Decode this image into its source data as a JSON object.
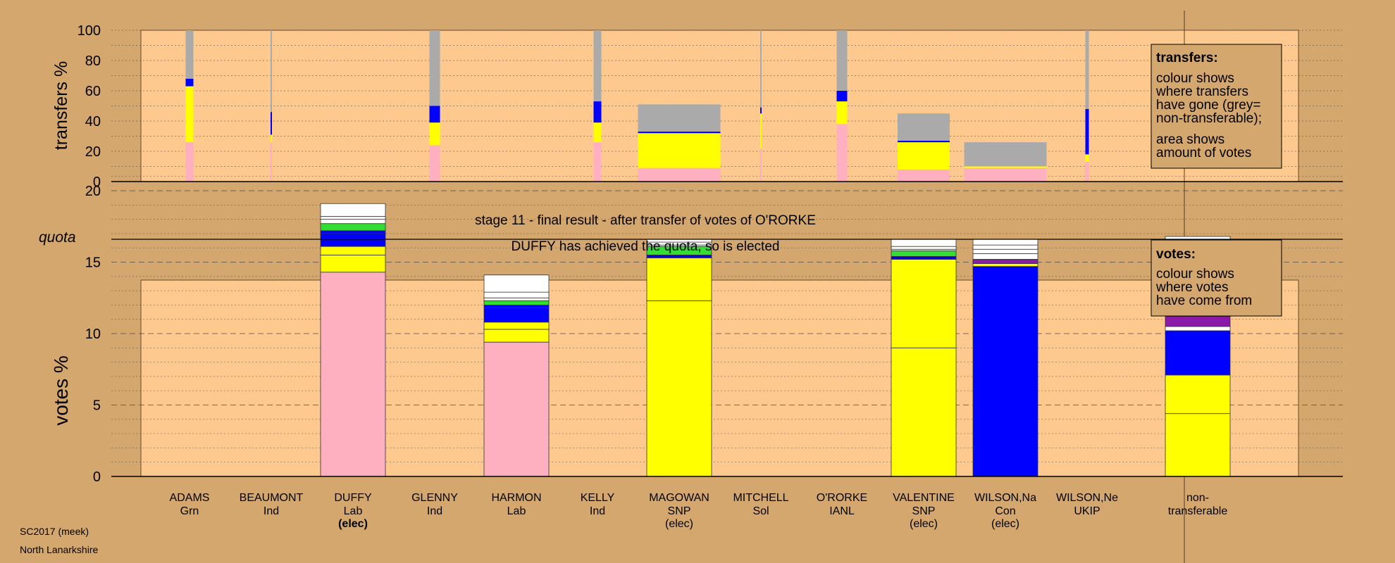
{
  "colors": {
    "page_bg": "#d4a76f",
    "panel_bg": "#fec98f",
    "Lab": "#ffb0c0",
    "SNP": "#ffff00",
    "Con": "#0000ff",
    "Grn": "#33dd33",
    "Other": "#8a1aa8",
    "Ind": "#ffffff",
    "nontransferable": "#aaaaaa"
  },
  "header": {
    "stage_text": "stage 11 - final result - after transfer of votes of O'RORKE",
    "elected_text": "DUFFY has achieved the quota, so is elected"
  },
  "footer": {
    "line1": "SC2017 (meek)",
    "line2": "North Lanarkshire"
  },
  "legend_transfers": {
    "title": "transfers:",
    "lines": [
      "colour shows",
      "where transfers",
      "have gone (grey=",
      "non-transferable);",
      "area shows",
      "amount of votes"
    ]
  },
  "legend_votes": {
    "title": "votes:",
    "lines": [
      "colour shows",
      "where votes",
      "have come from"
    ]
  },
  "chart_data": [
    {
      "type": "bar",
      "name": "transfers",
      "ylabel": "transfers %",
      "ylim": [
        0,
        100
      ],
      "yticks": [
        0,
        20,
        40,
        60,
        80,
        100
      ],
      "grid": true,
      "candidates": [
        {
          "name": "ADAMS",
          "width": "narrow",
          "segments": [
            {
              "party": "Lab",
              "value": 26
            },
            {
              "party": "SNP",
              "value": 37
            },
            {
              "party": "Con",
              "value": 5
            },
            {
              "party": "nontransferable",
              "value": 32
            }
          ]
        },
        {
          "name": "BEAUMONT",
          "width": "hair",
          "segments": [
            {
              "party": "Lab",
              "value": 26
            },
            {
              "party": "SNP",
              "value": 5
            },
            {
              "party": "Con",
              "value": 15
            },
            {
              "party": "nontransferable",
              "value": 54
            }
          ]
        },
        {
          "name": "DUFFY",
          "width": "none",
          "segments": []
        },
        {
          "name": "GLENNY",
          "width": "medium",
          "segments": [
            {
              "party": "Lab",
              "value": 24
            },
            {
              "party": "SNP",
              "value": 15
            },
            {
              "party": "Con",
              "value": 11
            },
            {
              "party": "nontransferable",
              "value": 50
            }
          ]
        },
        {
          "name": "HARMON",
          "width": "none",
          "segments": []
        },
        {
          "name": "KELLY",
          "width": "narrow",
          "segments": [
            {
              "party": "Lab",
              "value": 26
            },
            {
              "party": "SNP",
              "value": 13
            },
            {
              "party": "Con",
              "value": 14
            },
            {
              "party": "nontransferable",
              "value": 47
            }
          ]
        },
        {
          "name": "MAGOWAN",
          "width": "full",
          "segments": [
            {
              "party": "Lab",
              "value": 9
            },
            {
              "party": "SNP",
              "value": 23
            },
            {
              "party": "Con",
              "value": 1
            },
            {
              "party": "nontransferable",
              "value": 18
            }
          ]
        },
        {
          "name": "MITCHELL",
          "width": "hair",
          "segments": [
            {
              "party": "Lab",
              "value": 22
            },
            {
              "party": "SNP",
              "value": 23
            },
            {
              "party": "Con",
              "value": 4
            },
            {
              "party": "nontransferable",
              "value": 51
            }
          ]
        },
        {
          "name": "O'RORKE",
          "width": "medium",
          "segments": [
            {
              "party": "Lab",
              "value": 38
            },
            {
              "party": "SNP",
              "value": 15
            },
            {
              "party": "Con",
              "value": 7
            },
            {
              "party": "nontransferable",
              "value": 40
            }
          ]
        },
        {
          "name": "VALENTINE",
          "width": "wide",
          "segments": [
            {
              "party": "Lab",
              "value": 8
            },
            {
              "party": "SNP",
              "value": 18
            },
            {
              "party": "Con",
              "value": 1
            },
            {
              "party": "nontransferable",
              "value": 18
            }
          ]
        },
        {
          "name": "WILSON,Na",
          "width": "full",
          "segments": [
            {
              "party": "Lab",
              "value": 9
            },
            {
              "party": "SNP",
              "value": 1
            },
            {
              "party": "nontransferable",
              "value": 16
            }
          ]
        },
        {
          "name": "WILSON,Ne",
          "width": "narrow2",
          "segments": [
            {
              "party": "Lab",
              "value": 13
            },
            {
              "party": "SNP",
              "value": 5
            },
            {
              "party": "Con",
              "value": 30
            },
            {
              "party": "nontransferable",
              "value": 52
            }
          ]
        }
      ]
    },
    {
      "type": "bar",
      "name": "votes",
      "ylabel": "votes %",
      "ylim": [
        0,
        21.5
      ],
      "yticks": [
        0,
        5,
        10,
        15,
        20
      ],
      "quota": 16.6,
      "quota_label": "quota",
      "grid": true,
      "candidates": [
        {
          "name": "ADAMS",
          "party": "Grn",
          "elected": "",
          "segments": []
        },
        {
          "name": "BEAUMONT",
          "party": "Ind",
          "elected": "",
          "segments": []
        },
        {
          "name": "DUFFY",
          "party": "Lab",
          "elected": "(elec)",
          "elected_bold": true,
          "segments": [
            {
              "party": "Lab",
              "value": 14.3
            },
            {
              "party": "SNP",
              "value": 1.2
            },
            {
              "party": "SNP",
              "value": 0.6
            },
            {
              "party": "Con",
              "value": 0.9
            },
            {
              "party": "Con",
              "value": 0.2
            },
            {
              "party": "Grn",
              "value": 0.5
            },
            {
              "party": "Ind",
              "value": 0.3
            },
            {
              "party": "Ind",
              "value": 0.2
            },
            {
              "party": "Ind",
              "value": 0.9
            }
          ]
        },
        {
          "name": "GLENNY",
          "party": "Ind",
          "elected": "",
          "segments": []
        },
        {
          "name": "HARMON",
          "party": "Lab",
          "elected": "",
          "segments": [
            {
              "party": "Lab",
              "value": 9.4
            },
            {
              "party": "SNP",
              "value": 0.9
            },
            {
              "party": "SNP",
              "value": 0.5
            },
            {
              "party": "Con",
              "value": 1.0
            },
            {
              "party": "Con",
              "value": 0.2
            },
            {
              "party": "Grn",
              "value": 0.3
            },
            {
              "party": "Ind",
              "value": 0.2
            },
            {
              "party": "Ind",
              "value": 0.4
            },
            {
              "party": "Ind",
              "value": 1.2
            }
          ]
        },
        {
          "name": "KELLY",
          "party": "Ind",
          "elected": "",
          "segments": []
        },
        {
          "name": "MAGOWAN",
          "party": "SNP",
          "elected": "(elec)",
          "elected_bold": false,
          "segments": [
            {
              "party": "SNP",
              "value": 12.3
            },
            {
              "party": "SNP",
              "value": 3.0
            },
            {
              "party": "Con",
              "value": 0.2
            },
            {
              "party": "Grn",
              "value": 0.6
            },
            {
              "party": "Ind",
              "value": 0.1
            },
            {
              "party": "Ind",
              "value": 0.2
            },
            {
              "party": "Ind",
              "value": 0.2
            }
          ]
        },
        {
          "name": "MITCHELL",
          "party": "Sol",
          "elected": "",
          "segments": []
        },
        {
          "name": "O'RORKE",
          "party": "IANL",
          "elected": "",
          "segments": []
        },
        {
          "name": "VALENTINE",
          "party": "SNP",
          "elected": "(elec)",
          "elected_bold": false,
          "segments": [
            {
              "party": "SNP",
              "value": 9.0
            },
            {
              "party": "SNP",
              "value": 6.2
            },
            {
              "party": "Con",
              "value": 0.2
            },
            {
              "party": "Grn",
              "value": 0.4
            },
            {
              "party": "Ind",
              "value": 0.1
            },
            {
              "party": "Ind",
              "value": 0.2
            },
            {
              "party": "Ind",
              "value": 0.5
            }
          ]
        },
        {
          "name": "WILSON,Na",
          "party": "Con",
          "elected": "(elec)",
          "elected_bold": false,
          "segments": [
            {
              "party": "Con",
              "value": 14.7
            },
            {
              "party": "SNP",
              "value": 0.2
            },
            {
              "party": "Other",
              "value": 0.3
            },
            {
              "party": "Ind",
              "value": 0.4
            },
            {
              "party": "Ind",
              "value": 0.3
            },
            {
              "party": "Ind",
              "value": 0.3
            },
            {
              "party": "Ind",
              "value": 0.4
            }
          ]
        },
        {
          "name": "WILSON,Ne",
          "party": "UKIP",
          "elected": "",
          "segments": []
        }
      ],
      "nontransferable": {
        "label_line1": "non-",
        "label_line2": "transferable",
        "segments": [
          {
            "party": "SNP",
            "value": 4.4
          },
          {
            "party": "SNP",
            "value": 2.7
          },
          {
            "party": "Con",
            "value": 3.1
          },
          {
            "party": "Ind",
            "value": 0.3
          },
          {
            "party": "Other",
            "value": 0.7
          },
          {
            "party": "Ind",
            "value": 0.2
          },
          {
            "party": "Ind",
            "value": 0.9
          },
          {
            "party": "Grn",
            "value": 0.8
          },
          {
            "party": "Ind",
            "value": 1.6
          },
          {
            "party": "Ind",
            "value": 2.1
          }
        ]
      }
    }
  ]
}
